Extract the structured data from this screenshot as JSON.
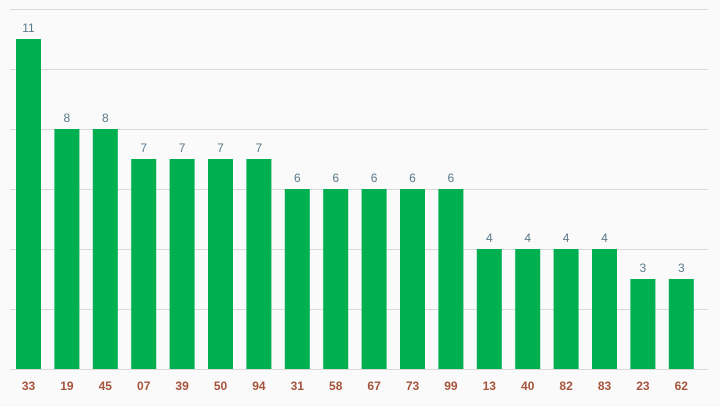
{
  "chart_data": {
    "type": "bar",
    "categories": [
      "33",
      "19",
      "45",
      "07",
      "39",
      "50",
      "94",
      "31",
      "58",
      "67",
      "73",
      "99",
      "13",
      "40",
      "82",
      "83",
      "23",
      "62"
    ],
    "values": [
      11,
      8,
      8,
      7,
      7,
      7,
      7,
      6,
      6,
      6,
      6,
      6,
      4,
      4,
      4,
      4,
      3,
      3
    ],
    "title": "",
    "xlabel": "",
    "ylabel": "",
    "ylim": [
      0,
      12
    ],
    "grid": true,
    "legend": "none",
    "data_labels": true,
    "colors": {
      "bar": "#00b050",
      "value_label": "#5b7a8c",
      "category_label": "#a5533a",
      "grid": "#d9d9d9",
      "axis": "#bfbfbf"
    }
  }
}
